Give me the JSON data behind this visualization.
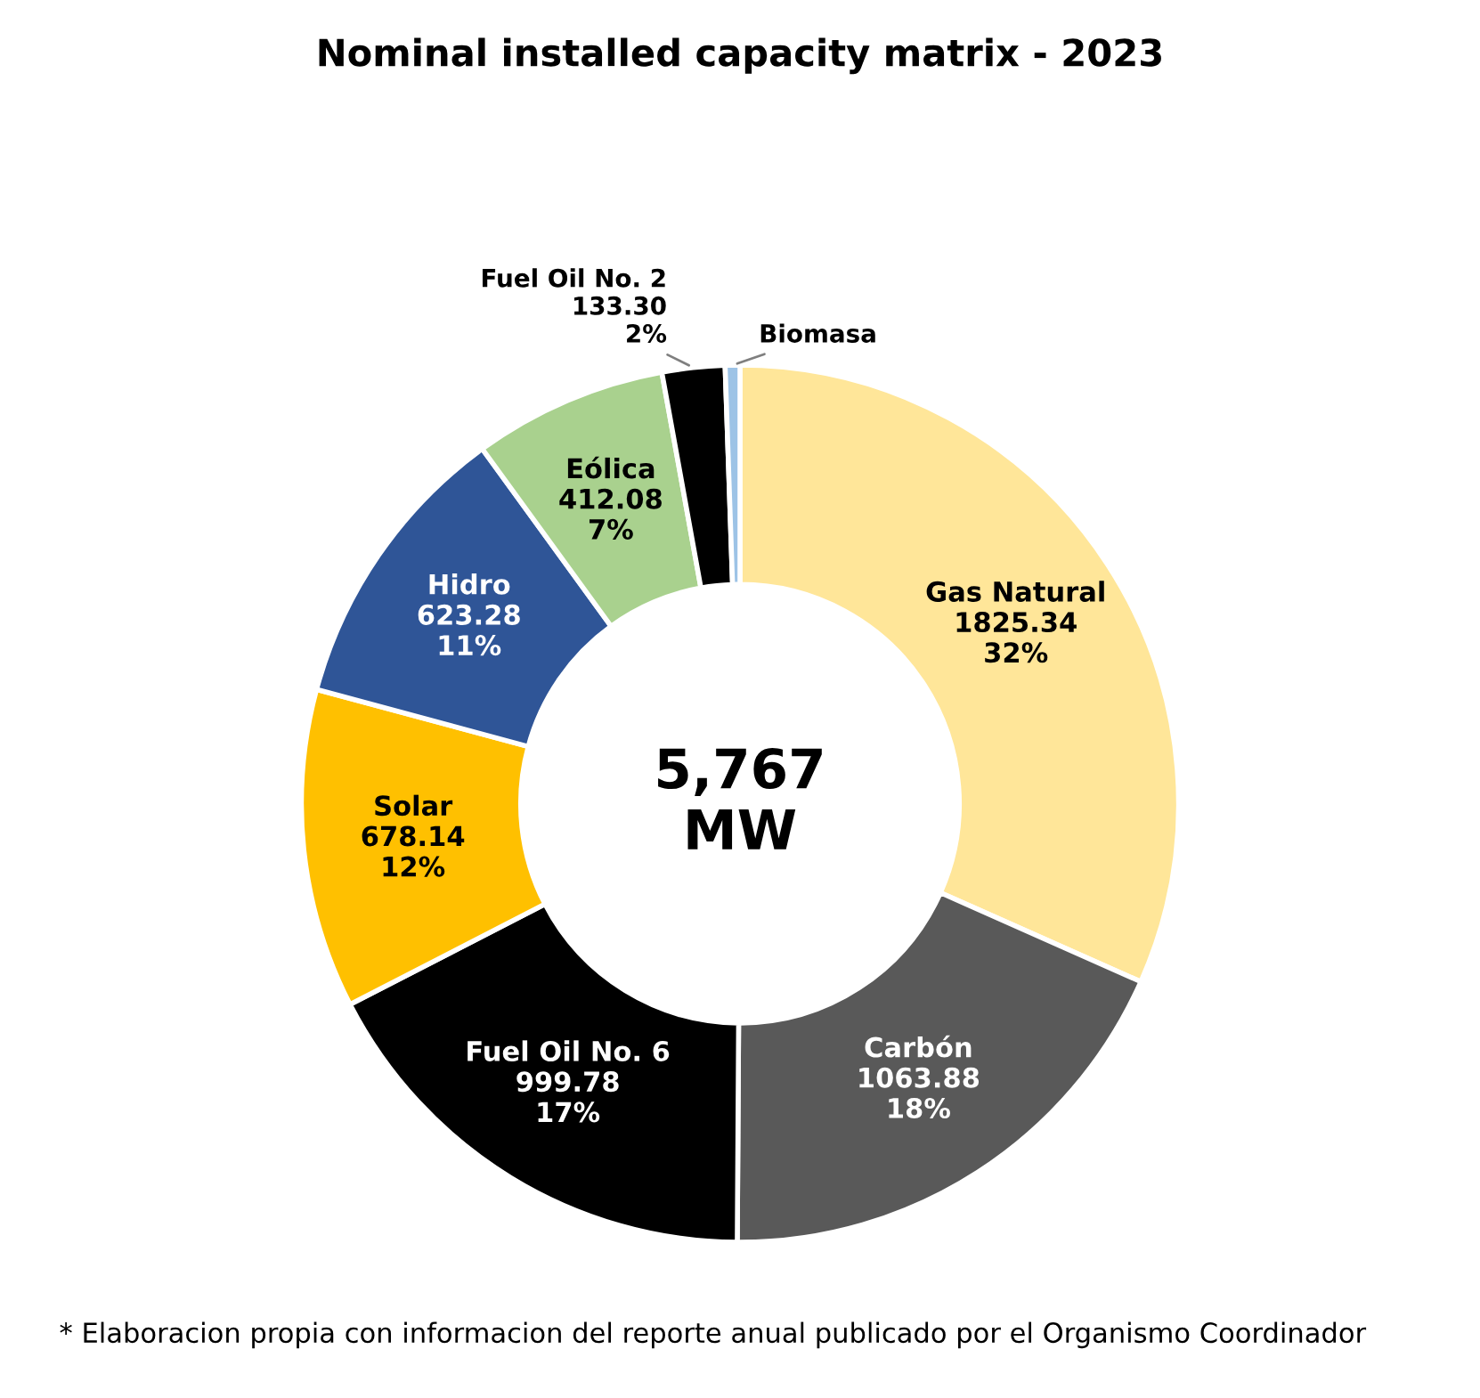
{
  "chart_data": {
    "type": "donut",
    "title": "Nominal installed capacity matrix - 2023",
    "categories": [
      "Gas Natural",
      "Carbón",
      "Fuel Oil No. 6",
      "Solar",
      "Hidro",
      "Eólica",
      "Fuel Oil No. 2",
      "Biomasa"
    ],
    "values": [
      1825.34,
      1063.88,
      999.78,
      678.14,
      623.28,
      412.08,
      133.3,
      31.2
    ],
    "colors": [
      "#ffe699",
      "#595959",
      "#000000",
      "#ffc000",
      "#2f5597",
      "#a9d18e",
      "#000000",
      "#9dc3e6"
    ],
    "value_labels": [
      "1825.34\n32%",
      "1063.88\n18%",
      "999.78\n17%",
      "678.14\n12%",
      "623.28\n11%",
      "412.08\n7%",
      "133.30\n2%",
      null
    ],
    "subtitle": "5,767\nMW",
    "annotations": [
      "* Elaboracion propia con informacion del reporte anual publicado por el Organismo Coordinador"
    ],
    "legend": false
  }
}
